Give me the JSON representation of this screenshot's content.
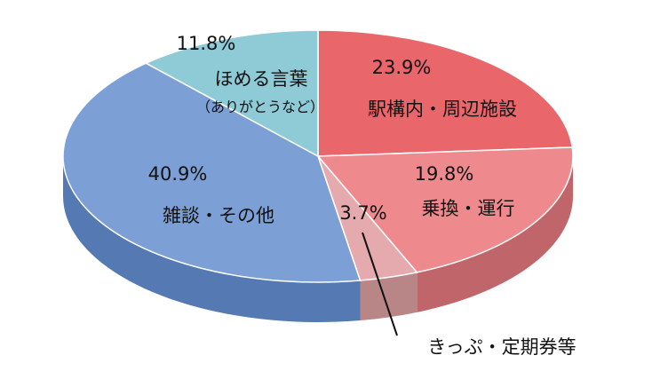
{
  "chart_data": {
    "type": "pie",
    "title": "",
    "start_angle_note": "clockwise from 12 o'clock",
    "slices": [
      {
        "name": "駅構内・周辺施設",
        "value": 23.9,
        "label": "23.9%",
        "color": "#E9666B",
        "side_color": "#B9484C"
      },
      {
        "name": "乗換・運行",
        "value": 19.8,
        "label": "19.8%",
        "color": "#EE8A8E",
        "side_color": "#C0666A"
      },
      {
        "name": "きっぷ・定期券等",
        "value": 3.7,
        "label": "3.7%",
        "color": "#E5AAAE",
        "side_color": "#B98688"
      },
      {
        "name": "雑談・その他",
        "value": 40.9,
        "label": "40.9%",
        "color": "#7CA0D6",
        "side_color": "#557AB3"
      },
      {
        "name": "ほめる言葉",
        "sub": "（ありがとうなど）",
        "value": 11.8,
        "label": "11.8%",
        "color": "#8ECBD6",
        "side_color": "#63A3AE"
      }
    ]
  }
}
